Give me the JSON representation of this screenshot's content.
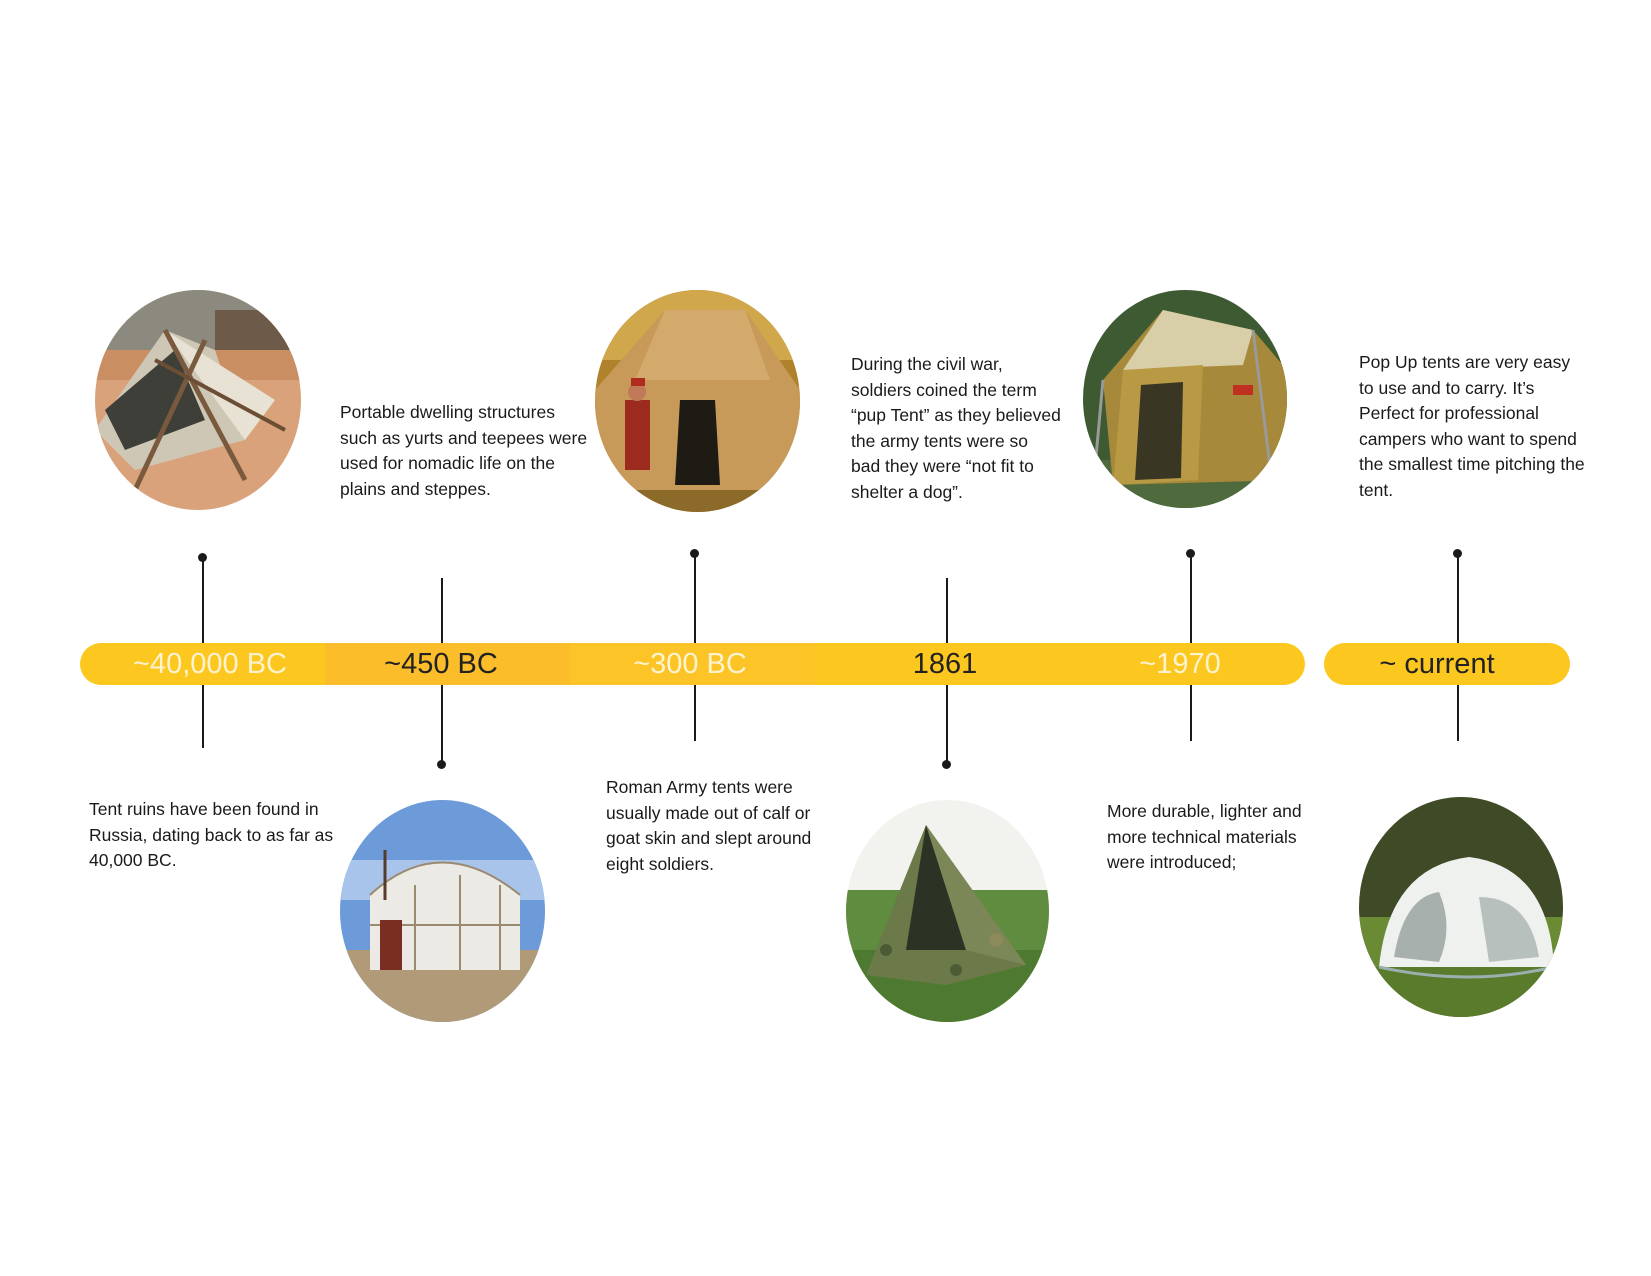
{
  "timeline": {
    "accent_color": "#fcc71f",
    "events": [
      {
        "era": "~40,000 BC",
        "description": "Tent ruins have been found in Russia, dating back to as far as 40,000 BC.",
        "image_icon": "lean-to-tent-photo-icon"
      },
      {
        "era": "~450 BC",
        "description": "Portable dwelling structures such as yurts and teepees were used for nomadic life on the plains and steppes.",
        "image_icon": "yurt-photo-icon"
      },
      {
        "era": "~300 BC",
        "description": "Roman Army tents were usually made out of calf or goat skin and slept around eight soldiers.",
        "image_icon": "roman-army-tent-photo-icon"
      },
      {
        "era": "1861",
        "description": "During the civil war, soldiers coined the term “pup Tent” as they believed the army tents were so bad they were “not fit to shelter a dog”.",
        "image_icon": "pup-tent-photo-icon"
      },
      {
        "era": "~1970",
        "description": "More durable, lighter and more technical materials were introduced;",
        "image_icon": "canvas-cabin-tent-photo-icon"
      },
      {
        "era": "~ current",
        "description": "Pop Up tents are very easy to use and to carry. It’s Perfect for professional campers who want to spend the smallest time pitching the tent.",
        "image_icon": "pop-up-tent-photo-icon"
      }
    ]
  }
}
